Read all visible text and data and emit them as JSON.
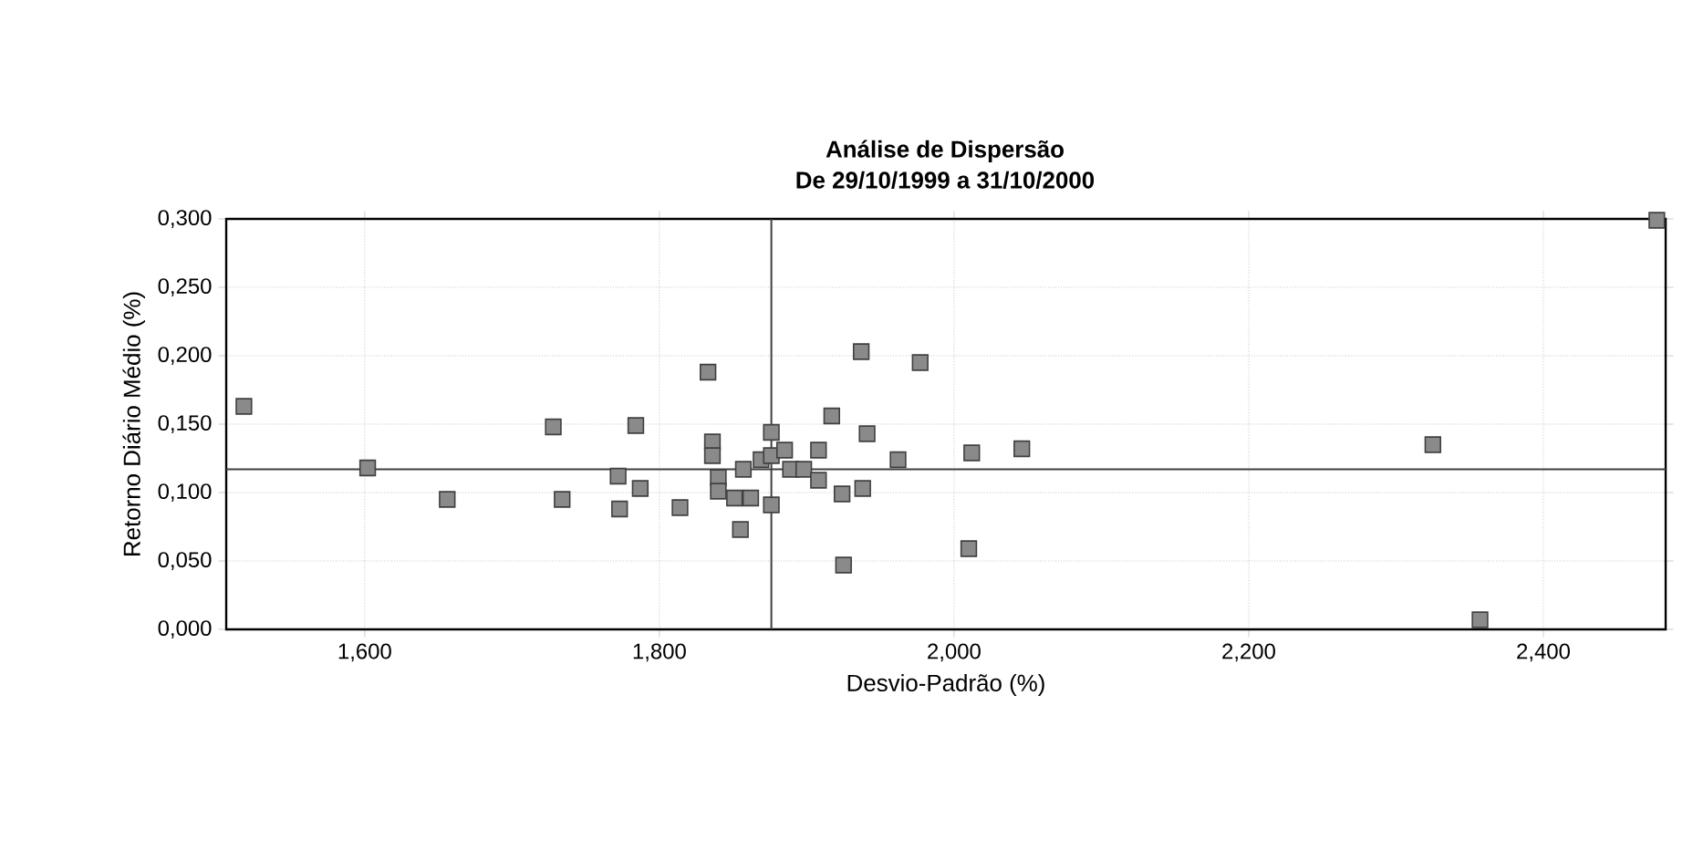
{
  "chart_data": {
    "type": "scatter",
    "title": "Análise de Dispersão",
    "subtitle": "De 29/10/1999 a 31/10/2000",
    "xlabel": "Desvio-Padrão (%)",
    "ylabel": "Retorno Diário Médio (%)",
    "xlim": [
      1.506,
      2.483
    ],
    "ylim": [
      0,
      0.3
    ],
    "xticks": [
      {
        "value": 1.6,
        "label": "1,600"
      },
      {
        "value": 1.8,
        "label": "1,800"
      },
      {
        "value": 2.0,
        "label": "2,000"
      },
      {
        "value": 2.2,
        "label": "2,200"
      },
      {
        "value": 2.4,
        "label": "2,400"
      }
    ],
    "yticks": [
      {
        "value": 0,
        "label": "0,000"
      },
      {
        "value": 0.05,
        "label": "0,050"
      },
      {
        "value": 0.1,
        "label": "0,100"
      },
      {
        "value": 0.15,
        "label": "0,150"
      },
      {
        "value": 0.2,
        "label": "0,200"
      },
      {
        "value": 0.25,
        "label": "0,250"
      },
      {
        "value": 0.3,
        "label": "0,300"
      }
    ],
    "grid": true,
    "marker": "square",
    "ref_lines": [
      {
        "axis": "x",
        "value": 1.876,
        "color": "#404040"
      },
      {
        "axis": "y",
        "value": 0.117,
        "color": "#404040"
      }
    ],
    "series": [
      {
        "color": "#8a8a8a",
        "x": [
          1.518,
          1.602,
          1.656,
          1.728,
          1.734,
          1.784,
          1.772,
          1.787,
          1.773,
          1.814,
          1.833,
          1.836,
          1.836,
          1.84,
          1.84,
          1.851,
          1.857,
          1.862,
          1.855,
          1.876,
          1.869,
          1.876,
          1.885,
          1.889,
          1.876,
          1.898,
          1.908,
          1.908,
          1.917,
          1.924,
          1.925,
          1.937,
          1.938,
          1.941,
          1.962,
          1.977,
          2.012,
          2.01,
          2.046,
          2.325,
          2.357,
          2.477
        ],
        "values": [
          0.163,
          0.118,
          0.095,
          0.148,
          0.095,
          0.149,
          0.112,
          0.103,
          0.088,
          0.089,
          0.188,
          0.137,
          0.127,
          0.111,
          0.101,
          0.096,
          0.117,
          0.096,
          0.073,
          0.144,
          0.124,
          0.127,
          0.131,
          0.117,
          0.091,
          0.117,
          0.131,
          0.109,
          0.156,
          0.099,
          0.047,
          0.203,
          0.103,
          0.143,
          0.124,
          0.195,
          0.129,
          0.059,
          0.132,
          0.135,
          0.007,
          0.299
        ]
      }
    ]
  }
}
